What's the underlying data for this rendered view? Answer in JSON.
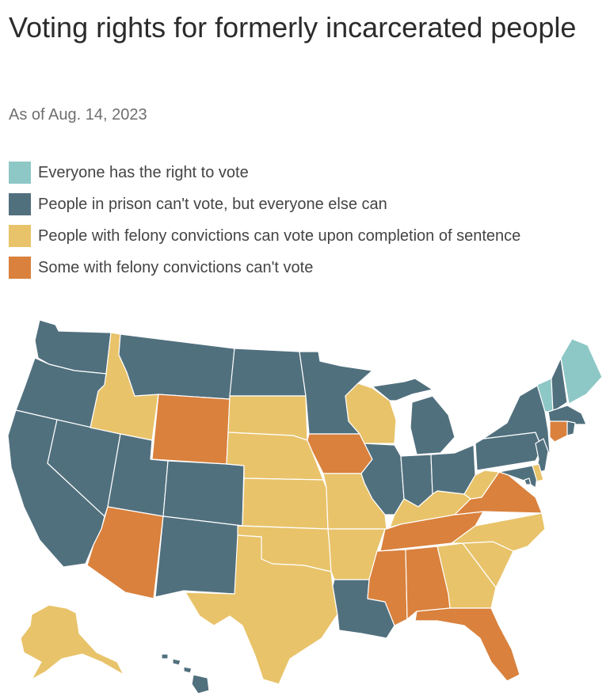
{
  "title": "Voting rights for formerly incarcerated people",
  "subtitle": "As of Aug. 14, 2023",
  "legend": [
    {
      "key": "all",
      "label": "Everyone has the right to vote",
      "color": "#8ec8c6"
    },
    {
      "key": "prison",
      "label": "People in prison can't vote, but everyone else can",
      "color": "#51707e"
    },
    {
      "key": "sentence",
      "label": "People with felony convictions can vote upon completion of sentence",
      "color": "#e8c36a"
    },
    {
      "key": "some",
      "label": "Some with felony convictions can't vote",
      "color": "#d9813d"
    }
  ],
  "states": {
    "ME": "all",
    "VT": "all",
    "WA": "prison",
    "OR": "prison",
    "CA": "prison",
    "NV": "prison",
    "MT": "prison",
    "UT": "prison",
    "CO": "prison",
    "NM": "prison",
    "ND": "prison",
    "MN": "prison",
    "IL": "prison",
    "IN": "prison",
    "MI": "prison",
    "OH": "prison",
    "PA": "prison",
    "NY": "prison",
    "NH": "prison",
    "MA": "prison",
    "RI": "prison",
    "NJ": "prison",
    "MD": "prison",
    "LA": "prison",
    "HI": "prison",
    "DC": "prison",
    "ID": "sentence",
    "SD": "sentence",
    "NE": "sentence",
    "KS": "sentence",
    "OK": "sentence",
    "TX": "sentence",
    "MO": "sentence",
    "AR": "sentence",
    "WI": "sentence",
    "KY": "sentence",
    "WV": "sentence",
    "NC": "sentence",
    "SC": "sentence",
    "GA": "sentence",
    "AK": "sentence",
    "DE": "sentence",
    "WY": "some",
    "AZ": "some",
    "IA": "some",
    "TN": "some",
    "MS": "some",
    "AL": "some",
    "FL": "some",
    "VA": "some",
    "CT": "some"
  }
}
